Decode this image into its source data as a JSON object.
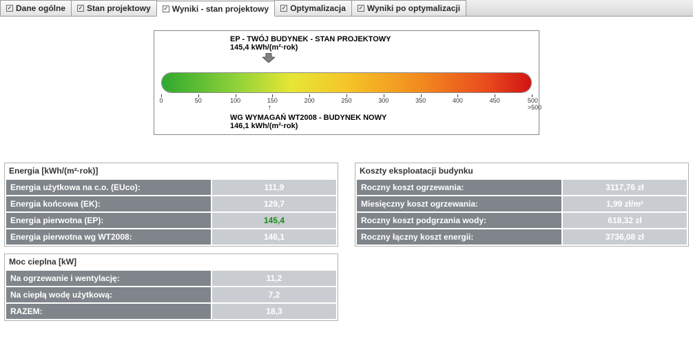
{
  "tabs": [
    {
      "label": "Dane ogólne",
      "active": false
    },
    {
      "label": "Stan projektowy",
      "active": false
    },
    {
      "label": "Wyniki - stan projektowy",
      "active": true
    },
    {
      "label": "Optymalizacja",
      "active": false
    },
    {
      "label": "Wyniki po optymalizacji",
      "active": false
    }
  ],
  "chart": {
    "title_line1": "EP - TWÓJ BUDYNEK - STAN PROJEKTOWY",
    "title_line2": "145,4 kWh/(m²·rok)",
    "footer_line1": "WG WYMAGAŃ WT2008 - BUDYNEK NOWY",
    "footer_line2": "146,1 kWh/(m²·rok)",
    "scale_min": 0,
    "scale_max": 500,
    "scale_max_label": ">500",
    "tick_step": 50,
    "pointer_value": 145.4,
    "ref_value": 146.1,
    "gradient_stops": [
      {
        "pct": 0,
        "color": "#2fa82f"
      },
      {
        "pct": 20,
        "color": "#8fd23a"
      },
      {
        "pct": 35,
        "color": "#e6e635"
      },
      {
        "pct": 50,
        "color": "#f5c529"
      },
      {
        "pct": 70,
        "color": "#f28a1e"
      },
      {
        "pct": 88,
        "color": "#e94b1e"
      },
      {
        "pct": 100,
        "color": "#d11313"
      }
    ],
    "arrow_color": "#808080",
    "border_color": "#888888",
    "background_color": "#ffffff"
  },
  "panels": {
    "energy": {
      "title": "Energia [kWh/(m²·rok)]",
      "rows": [
        {
          "k": "Energia użytkowa na c.o. (EUco):",
          "v": "111,9",
          "hl": false
        },
        {
          "k": "Energia końcowa (EK):",
          "v": "129,7",
          "hl": false
        },
        {
          "k": "Energia pierwotna (EP):",
          "v": "145,4",
          "hl": true
        },
        {
          "k": "Energia pierwotna wg WT2008:",
          "v": "146,1",
          "hl": false
        }
      ]
    },
    "costs": {
      "title": "Koszty eksploatacji budynku",
      "rows": [
        {
          "k": "Roczny koszt ogrzewania:",
          "v": "3117,76 zł"
        },
        {
          "k": "Miesięczny koszt ogrzewania:",
          "v": "1,99 zł/m²"
        },
        {
          "k": "Roczny koszt podgrzania wody:",
          "v": "618,32 zł"
        },
        {
          "k": "Roczny łączny koszt energii:",
          "v": "3736,08 zł"
        }
      ]
    },
    "power": {
      "title": "Moc cieplna [kW]",
      "rows": [
        {
          "k": "Na ogrzewanie i wentylację:",
          "v": "11,2"
        },
        {
          "k": "Na ciepłą wodę użytkową:",
          "v": "7,2"
        },
        {
          "k": "RAZEM:",
          "v": "18,3"
        }
      ]
    }
  },
  "colors": {
    "row_key_bg": "#7f858b",
    "row_val_bg": "#c9cdd1",
    "row_text": "#ffffff",
    "highlight": "#1a8a1a",
    "panel_border": "#b0b0b0"
  }
}
